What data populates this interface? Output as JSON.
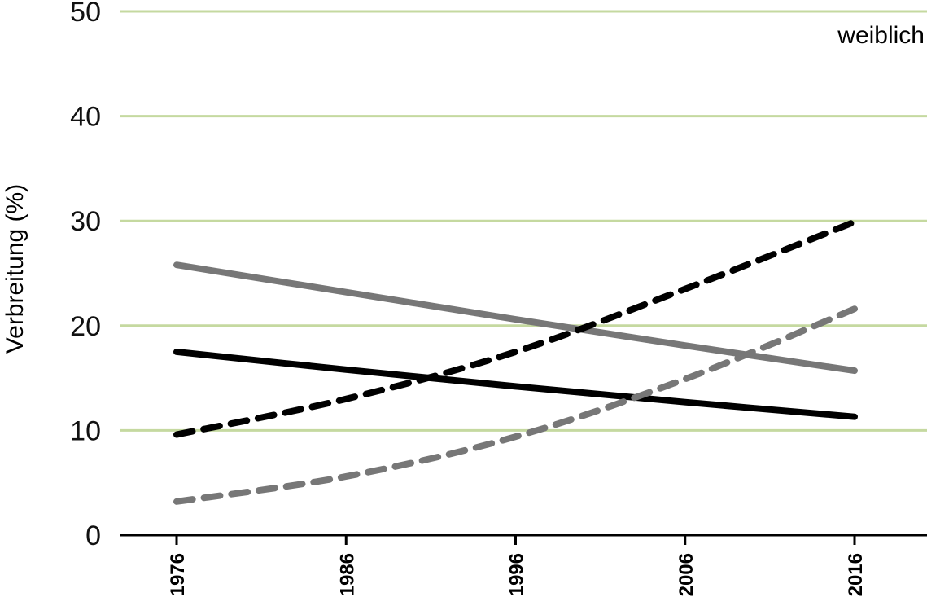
{
  "chart_data": {
    "type": "line",
    "title": "",
    "annotation": "weiblich",
    "xlabel": "",
    "ylabel": "Verbreitung (%)",
    "xlim": [
      1976,
      2016
    ],
    "ylim": [
      0,
      50
    ],
    "x_ticks": [
      "1976",
      "1986",
      "1996",
      "2006",
      "2016"
    ],
    "y_ticks": [
      "0",
      "10",
      "20",
      "30",
      "40",
      "50"
    ],
    "grid": true,
    "colors": {
      "grid": "#c5d9a0",
      "axis": "#000000",
      "black": "#000000",
      "gray": "#777777"
    },
    "series": [
      {
        "color": "#777777",
        "dash": "solid",
        "x": [
          1976,
          1986,
          1996,
          2006,
          2016
        ],
        "y": [
          25.8,
          23.2,
          20.6,
          18.1,
          15.7
        ]
      },
      {
        "color": "#000000",
        "dash": "solid",
        "x": [
          1976,
          1986,
          1996,
          2006,
          2016
        ],
        "y": [
          17.5,
          15.8,
          14.2,
          12.7,
          11.3
        ]
      },
      {
        "color": "#000000",
        "dash": "dashed",
        "x": [
          1976,
          1986,
          1996,
          2006,
          2016
        ],
        "y": [
          9.6,
          13.0,
          17.5,
          23.5,
          29.9
        ]
      },
      {
        "color": "#777777",
        "dash": "dashed",
        "x": [
          1976,
          1986,
          1996,
          2006,
          2016
        ],
        "y": [
          3.2,
          5.6,
          9.4,
          14.9,
          21.6
        ]
      }
    ]
  }
}
